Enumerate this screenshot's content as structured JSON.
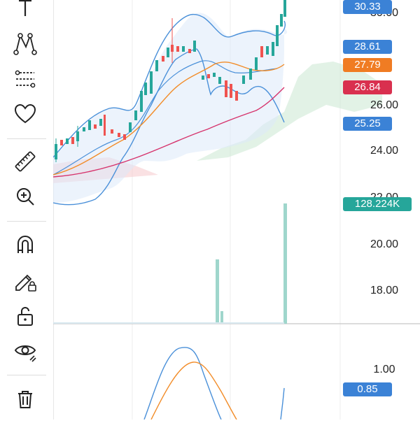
{
  "toolbar": {
    "tools": [
      {
        "name": "text-tool",
        "icon": "text-icon"
      },
      {
        "name": "pattern-tool",
        "icon": "pattern-icon"
      },
      {
        "name": "fib-tool",
        "icon": "fibonacci-icon"
      },
      {
        "name": "favorites-tool",
        "icon": "heart-icon"
      },
      {
        "name": "measure-tool",
        "icon": "ruler-icon"
      },
      {
        "name": "zoom-tool",
        "icon": "zoom-in-icon"
      },
      {
        "name": "magnet-tool",
        "icon": "magnet-icon"
      },
      {
        "name": "lock-drawings-tool",
        "icon": "pencil-lock-icon"
      },
      {
        "name": "lock-tool",
        "icon": "unlock-icon"
      },
      {
        "name": "hide-tool",
        "icon": "eye-icon"
      },
      {
        "name": "delete-tool",
        "icon": "trash-icon"
      }
    ]
  },
  "price_axis": {
    "ticks": [
      "30.00",
      "26.00",
      "24.00",
      "22.00",
      "20.00",
      "18.00",
      "1.00"
    ],
    "badges": {
      "last_price": "30.33",
      "upper_band": "28.61",
      "ema": "27.79",
      "sma": "26.84",
      "lower_band": "25.25",
      "volume": "128.224K",
      "indicator": "0.85"
    }
  },
  "colors": {
    "up": "#26a69a",
    "down": "#ef5350",
    "bollinger": "#4a90d9",
    "ema": "#f28c28",
    "sma": "#d6336c",
    "badge_blue": "#3b82d6",
    "badge_orange": "#f07c23",
    "badge_red": "#d9304f",
    "badge_teal": "#26a69a"
  }
}
